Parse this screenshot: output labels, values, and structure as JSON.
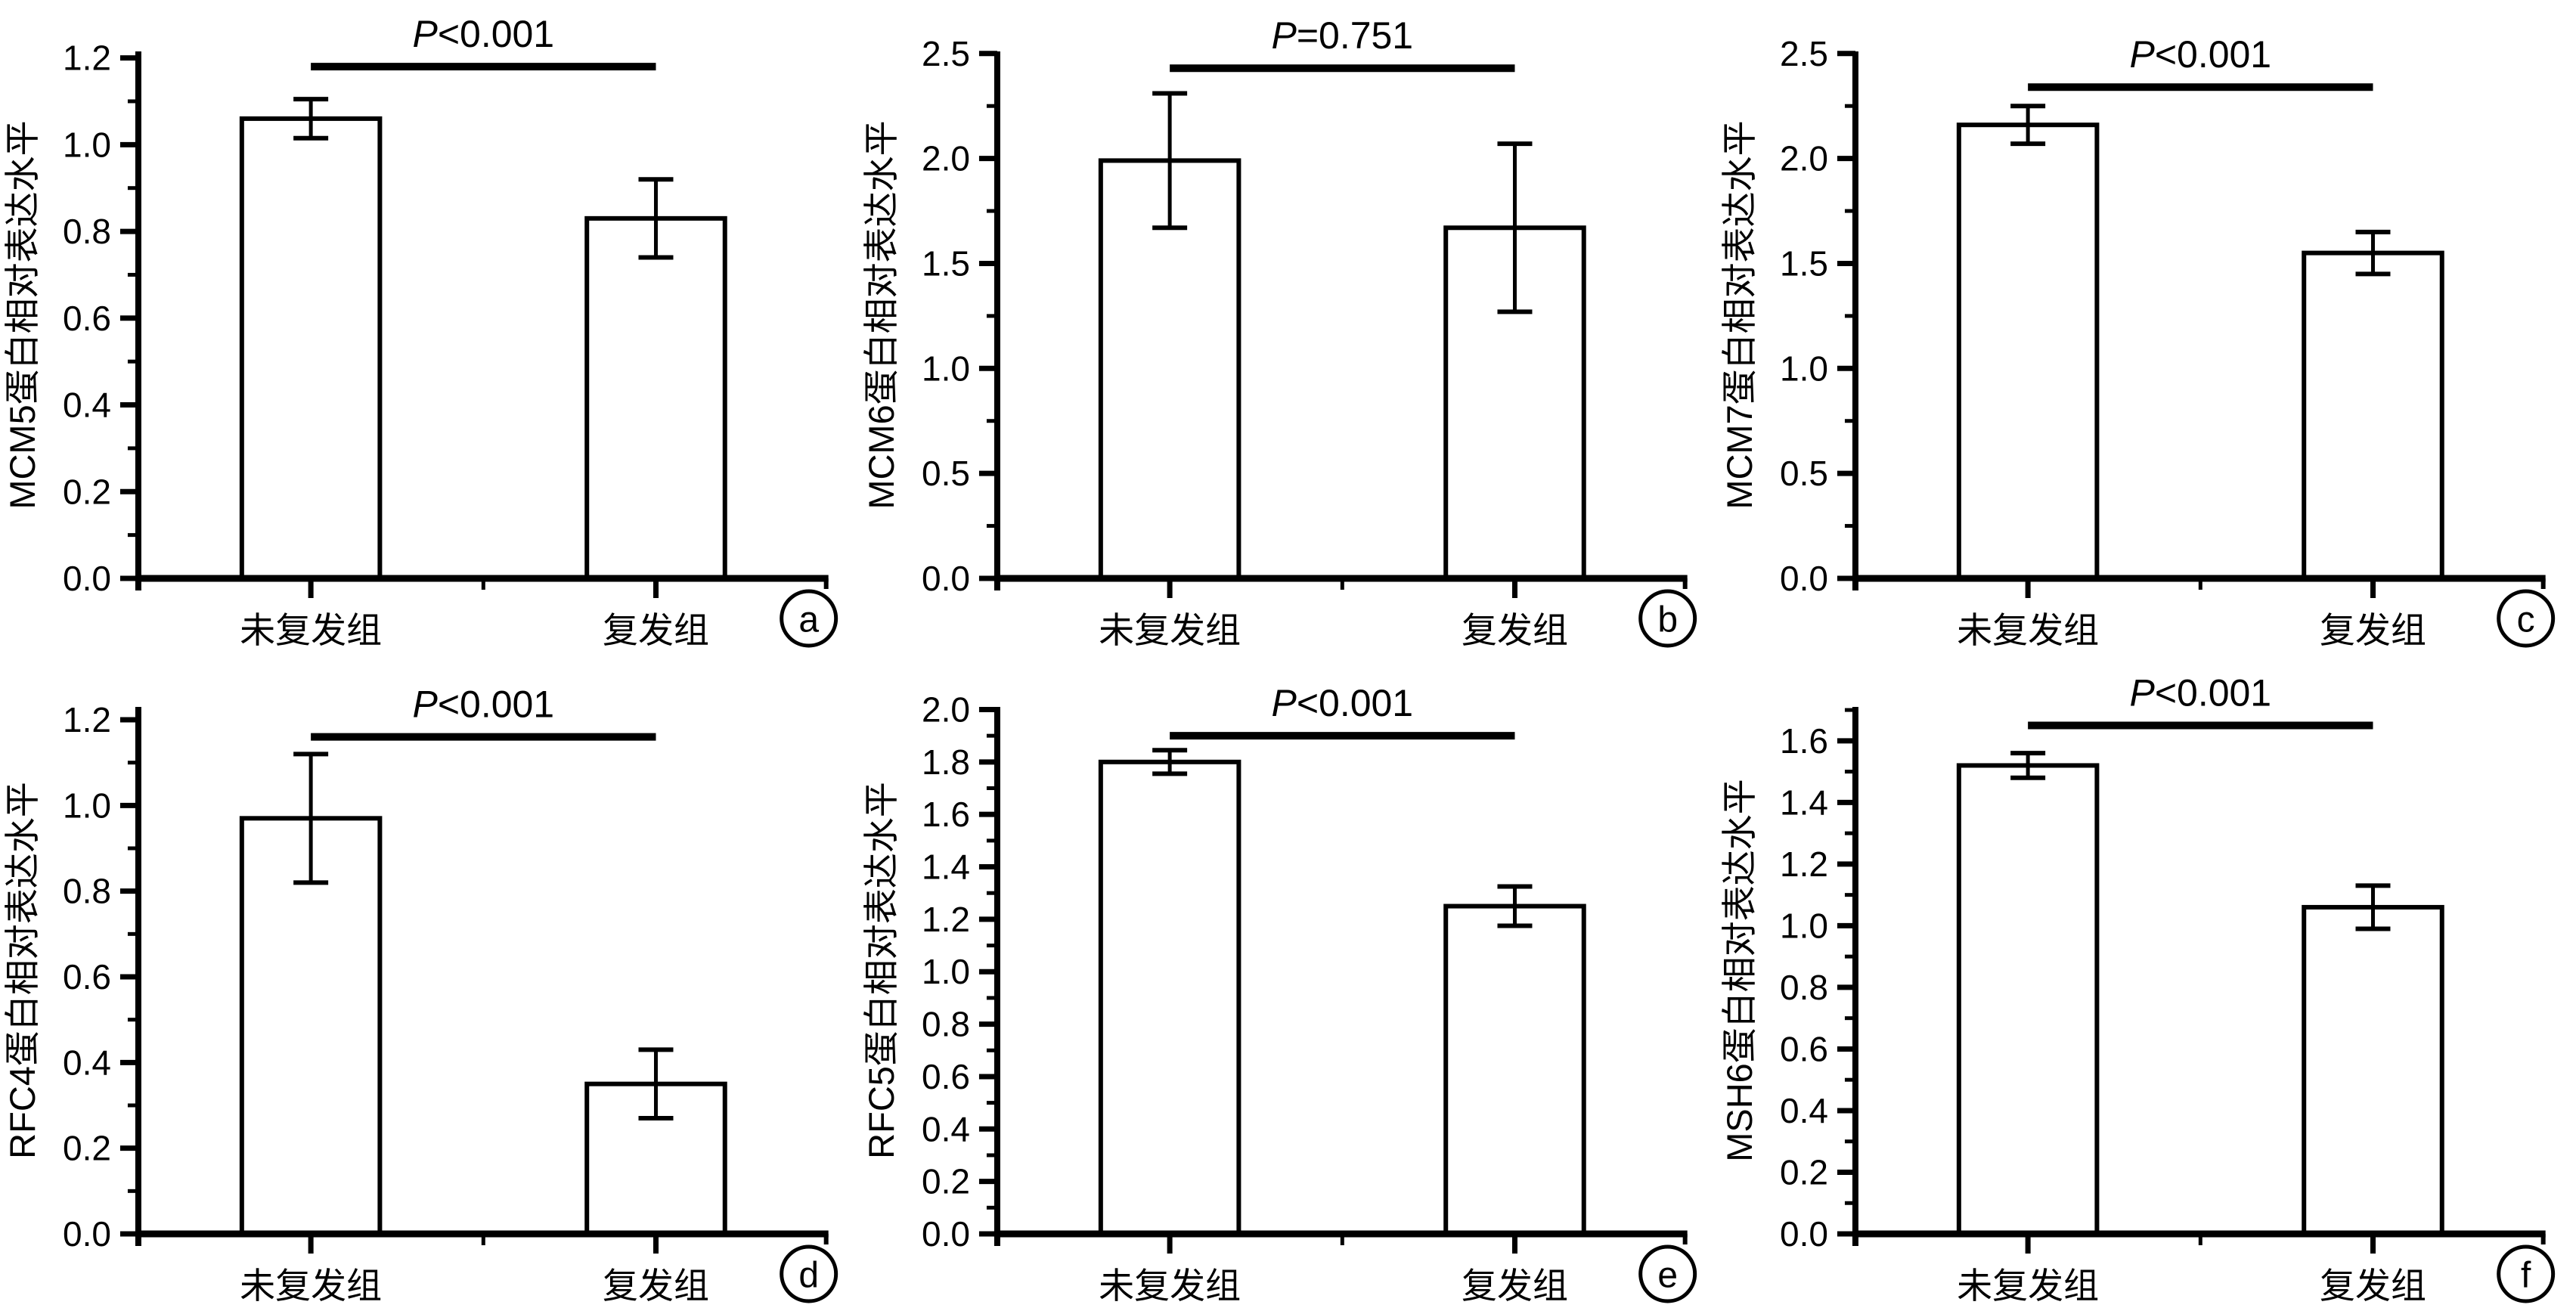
{
  "page": {
    "background": "#ffffff",
    "ink": "#000000",
    "bar_fill": "#ffffff"
  },
  "chart_data": [
    {
      "type": "bar",
      "panel_letter": "a",
      "ylabel": "MCM5蛋白相对表达水平",
      "categories": [
        "未复发组",
        "复发组"
      ],
      "values": [
        1.06,
        0.83
      ],
      "errors": [
        0.045,
        0.09
      ],
      "p_label": "P<0.001",
      "sig_line_y": 1.18,
      "ylim": [
        0,
        1.215
      ],
      "ytick_step": 0.2,
      "ytick_top": 1.2,
      "grid": false,
      "legend": false
    },
    {
      "type": "bar",
      "panel_letter": "b",
      "ylabel": "MCM6蛋白相对表达水平",
      "categories": [
        "未复发组",
        "复发组"
      ],
      "values": [
        1.99,
        1.67
      ],
      "errors": [
        0.32,
        0.4
      ],
      "p_label": "P=0.751",
      "sig_line_y": 2.43,
      "ylim": [
        0,
        2.51
      ],
      "ytick_step": 0.5,
      "ytick_top": 2.5,
      "grid": false,
      "legend": false
    },
    {
      "type": "bar",
      "panel_letter": "c",
      "ylabel": "MCM7蛋白相对表达水平",
      "categories": [
        "未复发组",
        "复发组"
      ],
      "values": [
        2.16,
        1.55
      ],
      "errors": [
        0.09,
        0.1
      ],
      "p_label": "P<0.001",
      "sig_line_y": 2.34,
      "ylim": [
        0,
        2.51
      ],
      "ytick_step": 0.5,
      "ytick_top": 2.5,
      "grid": false,
      "legend": false
    },
    {
      "type": "bar",
      "panel_letter": "d",
      "ylabel": "RFC4蛋白相对表达水平",
      "categories": [
        "未复发组",
        "复发组"
      ],
      "values": [
        0.97,
        0.35
      ],
      "errors": [
        0.15,
        0.08
      ],
      "p_label": "P<0.001",
      "sig_line_y": 1.16,
      "ylim": [
        0,
        1.23
      ],
      "ytick_step": 0.2,
      "ytick_top": 1.2,
      "grid": false,
      "legend": false
    },
    {
      "type": "bar",
      "panel_letter": "e",
      "ylabel": "RFC5蛋白相对表达水平",
      "categories": [
        "未复发组",
        "复发组"
      ],
      "values": [
        1.8,
        1.25
      ],
      "errors": [
        0.045,
        0.075
      ],
      "p_label": "P<0.001",
      "sig_line_y": 1.9,
      "ylim": [
        0,
        2.01
      ],
      "ytick_step": 0.2,
      "ytick_top": 2.0,
      "grid": false,
      "legend": false
    },
    {
      "type": "bar",
      "panel_letter": "f",
      "ylabel": "MSH6蛋白相对表达水平",
      "categories": [
        "未复发组",
        "复发组"
      ],
      "values": [
        1.52,
        1.06
      ],
      "errors": [
        0.04,
        0.07
      ],
      "p_label": "P<0.001",
      "sig_line_y": 1.65,
      "ylim": [
        0,
        1.71
      ],
      "ytick_step": 0.2,
      "ytick_top": 1.6,
      "grid": false,
      "legend": false
    }
  ]
}
